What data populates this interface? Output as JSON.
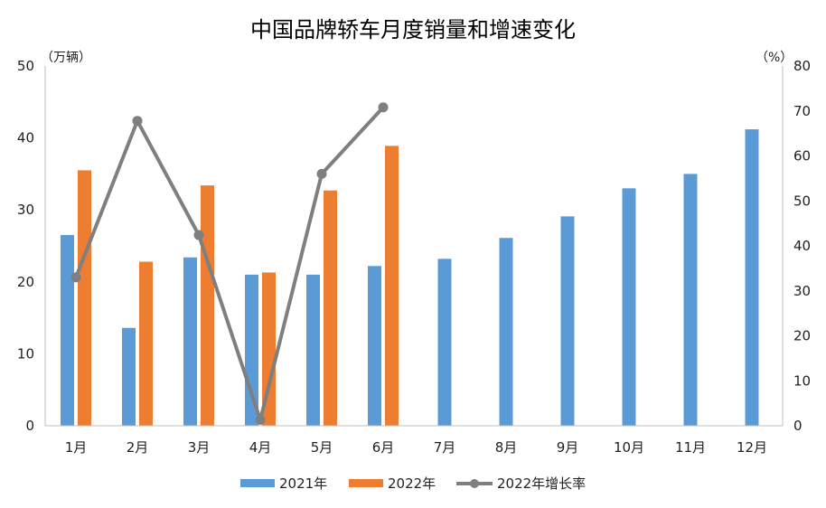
{
  "chart_data": {
    "type": "bar",
    "title": "中国品牌轿车月度销量和增速变化",
    "categories": [
      "1月",
      "2月",
      "3月",
      "4月",
      "5月",
      "6月",
      "7月",
      "8月",
      "9月",
      "10月",
      "11月",
      "12月"
    ],
    "y_left": {
      "unit": "（万辆）",
      "ylim": [
        0,
        50
      ],
      "ticks": [
        "0",
        "10",
        "20",
        "30",
        "40",
        "50"
      ]
    },
    "y_right": {
      "unit": "（%）",
      "ylim": [
        0,
        80
      ],
      "ticks": [
        "0",
        "10",
        "20",
        "30",
        "40",
        "50",
        "60",
        "70",
        "80"
      ]
    },
    "series": [
      {
        "name": "2021年",
        "type": "bar",
        "axis": "left",
        "color": "#5B9BD5",
        "values": [
          26.5,
          13.6,
          23.4,
          21.0,
          21.0,
          22.2,
          23.2,
          26.1,
          29.1,
          33.0,
          35.0,
          41.2
        ]
      },
      {
        "name": "2022年",
        "type": "bar",
        "axis": "left",
        "color": "#ED7D31",
        "values": [
          35.5,
          22.8,
          33.4,
          21.3,
          32.7,
          38.9,
          null,
          null,
          null,
          null,
          null,
          null
        ]
      },
      {
        "name": "2022年增长率",
        "type": "line",
        "axis": "right",
        "color": "#7F7F7F",
        "values": [
          33.0,
          67.8,
          42.4,
          1.3,
          56.0,
          70.8,
          null,
          null,
          null,
          null,
          null,
          null
        ]
      }
    ],
    "grid": false,
    "legend": "bottom"
  }
}
